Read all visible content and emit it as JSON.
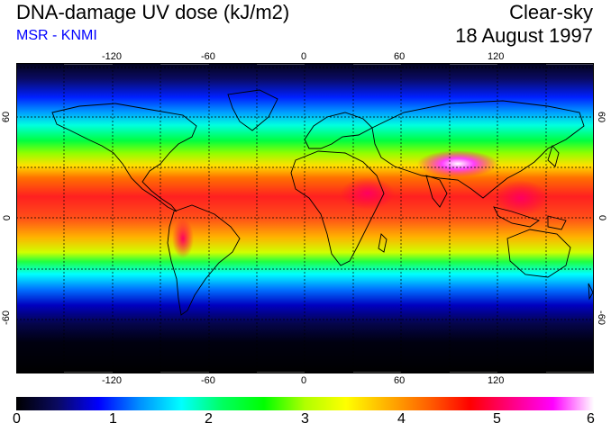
{
  "header": {
    "title": "DNA-damage UV dose (kJ/m2)",
    "subtitle": "MSR - KNMI",
    "sky": "Clear-sky",
    "date": "18 August 1997"
  },
  "colors": {
    "subtitle": "#0000ff",
    "scale": [
      "#000000",
      "#0a0a60",
      "#0000ff",
      "#0090ff",
      "#00ffff",
      "#00ff60",
      "#00ff00",
      "#b0ff00",
      "#ffff00",
      "#ffb000",
      "#ff6000",
      "#ff0000",
      "#ff0080",
      "#ff00ff",
      "#ffffff"
    ]
  },
  "map": {
    "lon_ticks": [
      "-120",
      "-60",
      "0",
      "60",
      "120"
    ],
    "lat_ticks_left": [
      "60",
      "0",
      "-60"
    ],
    "lat_ticks_right": [
      "60",
      "0",
      "-60"
    ],
    "grid": "dashed"
  },
  "colorbar": {
    "labels": [
      "0",
      "1",
      "2",
      "3",
      "4",
      "5",
      "6"
    ],
    "min": 0,
    "max": 6
  }
}
